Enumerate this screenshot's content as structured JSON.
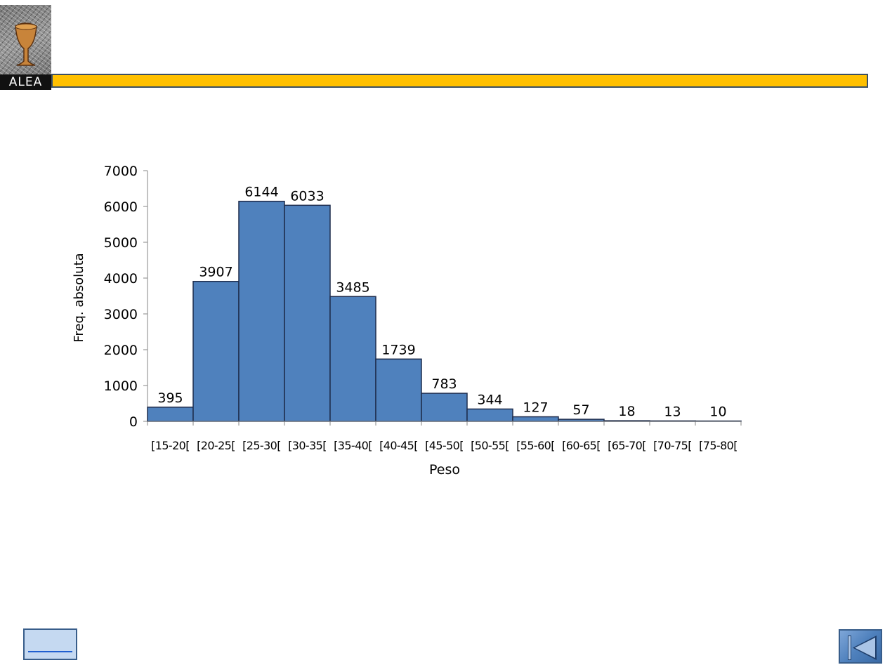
{
  "header": {
    "logo_text": "ALEA",
    "bar_color": "#ffc000"
  },
  "chart_data": {
    "type": "bar",
    "title": "",
    "xlabel": "Peso",
    "ylabel": "Freq. absoluta",
    "categories": [
      "[15-20[",
      "[20-25[",
      "[25-30[",
      "[30-35[",
      "[35-40[",
      "[40-45[",
      "[45-50[",
      "[50-55[",
      "[55-60[",
      "[60-65[",
      "[65-70[",
      "[70-75[",
      "[75-80["
    ],
    "values": [
      395,
      3907,
      6144,
      6033,
      3485,
      1739,
      783,
      344,
      127,
      57,
      18,
      13,
      10
    ],
    "ylim": [
      0,
      7000
    ],
    "yticks": [
      0,
      1000,
      2000,
      3000,
      4000,
      5000,
      6000,
      7000
    ],
    "bar_color": "#4f81bd",
    "bar_edge_color": "#1f2d4d",
    "grid": false,
    "legend": "none"
  },
  "nav": {
    "prev_icon": "underline-link-icon",
    "first_icon": "skip-to-first-icon"
  }
}
